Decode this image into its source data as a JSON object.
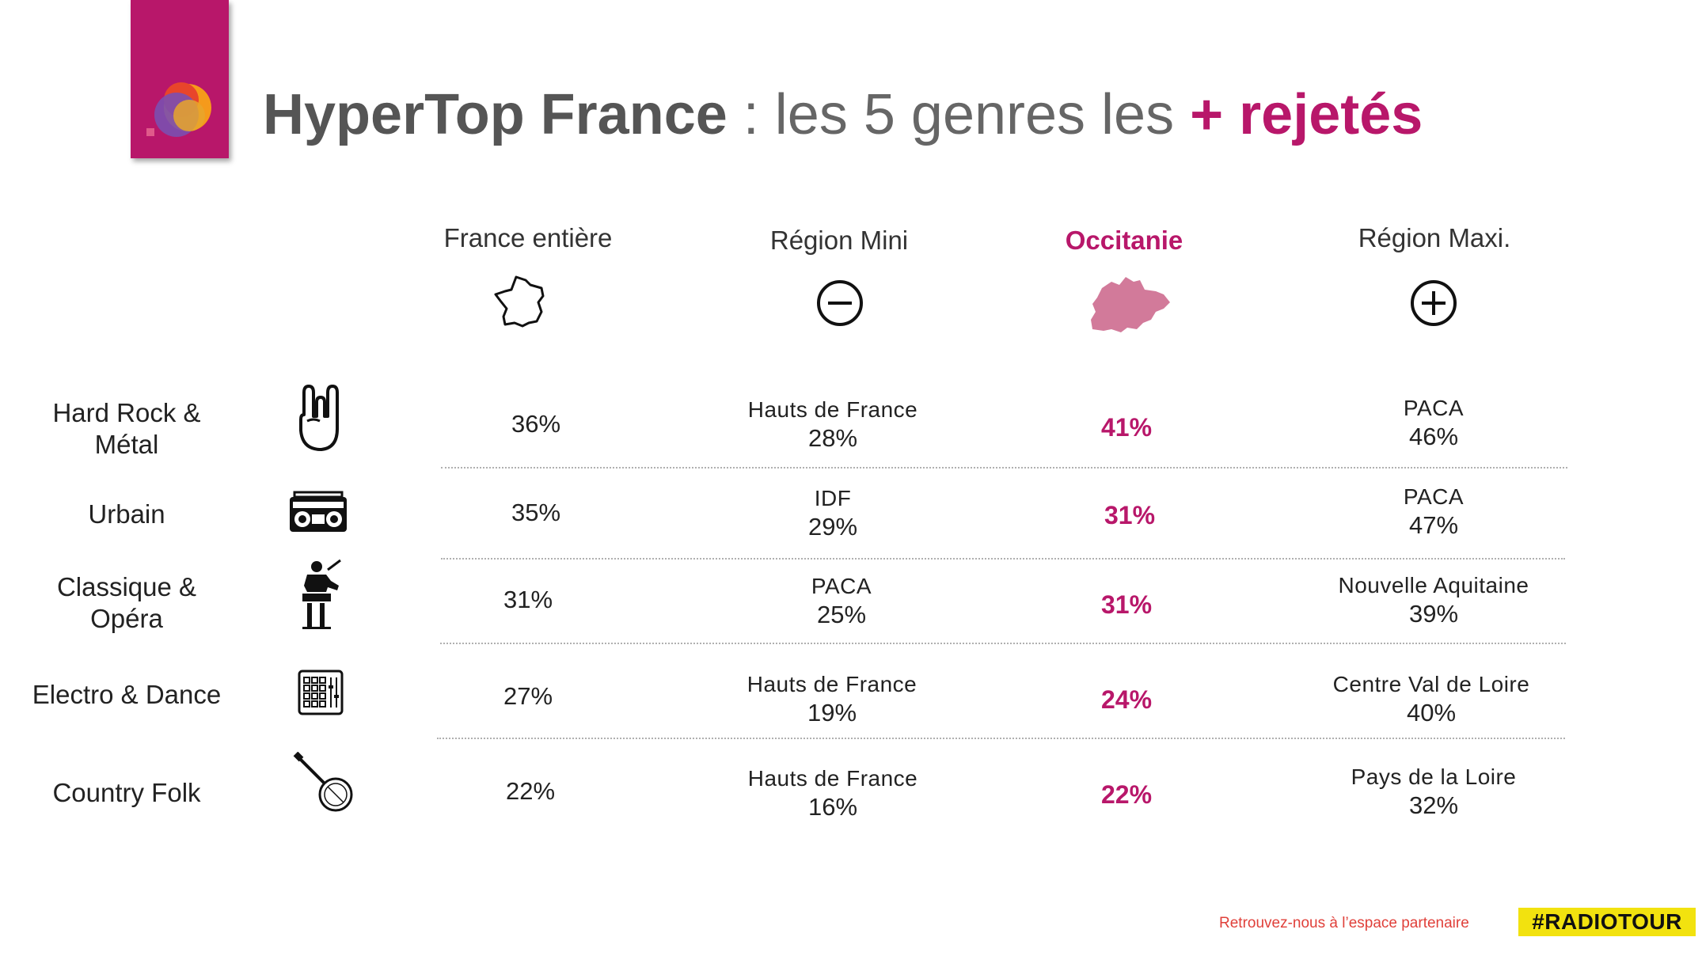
{
  "title": {
    "brand": "HyperTop France",
    "middle": " : les 5 genres les ",
    "accent": "+ rejetés"
  },
  "columns": [
    {
      "label": "France entière",
      "icon": "france-map-icon"
    },
    {
      "label": "Région Mini",
      "icon": "minus-circle-icon"
    },
    {
      "label": "Occitanie",
      "icon": "occitanie-map-icon"
    },
    {
      "label": "Région Maxi.",
      "icon": "plus-circle-icon"
    }
  ],
  "rows": [
    {
      "genre": "Hard Rock &\nMétal",
      "icon": "rock-hand-icon",
      "france": "36%",
      "mini": {
        "region": "Hauts de France",
        "pct": "28%"
      },
      "occitanie": "41%",
      "maxi": {
        "region": "PACA",
        "pct": "46%"
      }
    },
    {
      "genre": "Urbain",
      "icon": "boombox-icon",
      "france": "35%",
      "mini": {
        "region": "IDF",
        "pct": "29%"
      },
      "occitanie": "31%",
      "maxi": {
        "region": "PACA",
        "pct": "47%"
      }
    },
    {
      "genre": "Classique &\nOpéra",
      "icon": "conductor-icon",
      "france": "31%",
      "mini": {
        "region": "PACA",
        "pct": "25%"
      },
      "occitanie": "31%",
      "maxi": {
        "region": "Nouvelle Aquitaine",
        "pct": "39%"
      }
    },
    {
      "genre": "Electro & Dance",
      "icon": "drum-pad-icon",
      "france": "27%",
      "mini": {
        "region": "Hauts de France",
        "pct": "19%"
      },
      "occitanie": "24%",
      "maxi": {
        "region": "Centre Val de Loire",
        "pct": "40%"
      }
    },
    {
      "genre": "Country Folk",
      "icon": "banjo-icon",
      "france": "22%",
      "mini": {
        "region": "Hauts de France",
        "pct": "16%"
      },
      "occitanie": "22%",
      "maxi": {
        "region": "Pays de la Loire",
        "pct": "32%"
      }
    }
  ],
  "footer": {
    "text": "Retrouvez-nous à l’espace partenaire",
    "hashtag": "#RADIOTOUR"
  },
  "colors": {
    "accent": "#b8176a",
    "brand_text": "#555555",
    "hashtag_bg": "#f2e20f",
    "footer_text": "#e0403a"
  }
}
